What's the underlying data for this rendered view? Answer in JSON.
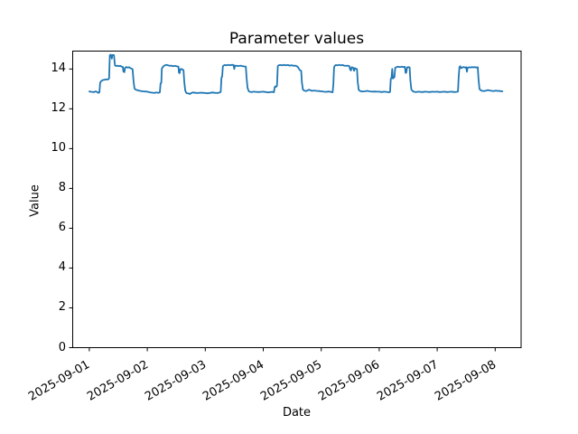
{
  "chart_data": {
    "type": "line",
    "title": "Parameter values",
    "xlabel": "Date",
    "ylabel": "Value",
    "line_color": "#1f77b4",
    "axis_color": "#000000",
    "background_color": "#ffffff",
    "ylim": [
      0,
      14.9
    ],
    "yticks": [
      0,
      2,
      4,
      6,
      8,
      10,
      12,
      14
    ],
    "xticks": [
      "2025-09-01",
      "2025-09-02",
      "2025-09-03",
      "2025-09-04",
      "2025-09-05",
      "2025-09-06",
      "2025-09-07",
      "2025-09-08"
    ],
    "x_unit": "hours since 2025-09-01 00:00",
    "legend": null,
    "grid": false,
    "points": [
      [
        0,
        12.87
      ],
      [
        1,
        12.85
      ],
      [
        2,
        12.84
      ],
      [
        2.6,
        12.88
      ],
      [
        3.2,
        12.84
      ],
      [
        3.8,
        12.8
      ],
      [
        4.2,
        12.83
      ],
      [
        4.5,
        13.32
      ],
      [
        5,
        13.4
      ],
      [
        5.5,
        13.44
      ],
      [
        6.2,
        13.46
      ],
      [
        7,
        13.48
      ],
      [
        7.6,
        13.47
      ],
      [
        8.2,
        13.52
      ],
      [
        8.5,
        14.68
      ],
      [
        8.8,
        14.72
      ],
      [
        9.1,
        14.68
      ],
      [
        9.3,
        14.52
      ],
      [
        9.5,
        14.7
      ],
      [
        10.2,
        14.7
      ],
      [
        10.4,
        14.45
      ],
      [
        10.6,
        14.18
      ],
      [
        11,
        14.15
      ],
      [
        11.6,
        14.17
      ],
      [
        12.2,
        14.14
      ],
      [
        12.8,
        14.16
      ],
      [
        13.4,
        14.12
      ],
      [
        13.9,
        14.1
      ],
      [
        14.1,
        13.88
      ],
      [
        14.5,
        13.84
      ],
      [
        14.8,
        14.06
      ],
      [
        15.3,
        14.1
      ],
      [
        15.9,
        14.07
      ],
      [
        16.4,
        14.09
      ],
      [
        17,
        14.04
      ],
      [
        17.6,
        14.01
      ],
      [
        17.9,
        13.99
      ],
      [
        18.3,
        13.38
      ],
      [
        18.7,
        13.02
      ],
      [
        19.2,
        12.96
      ],
      [
        20,
        12.93
      ],
      [
        21,
        12.9
      ],
      [
        22,
        12.88
      ],
      [
        23,
        12.87
      ],
      [
        24,
        12.86
      ],
      [
        25,
        12.83
      ],
      [
        26,
        12.81
      ],
      [
        27,
        12.8
      ],
      [
        27.8,
        12.82
      ],
      [
        28.6,
        12.8
      ],
      [
        29.2,
        12.83
      ],
      [
        29.5,
        13.28
      ],
      [
        29.8,
        13.3
      ],
      [
        30,
        14.02
      ],
      [
        30.3,
        14.08
      ],
      [
        30.8,
        14.15
      ],
      [
        31.4,
        14.19
      ],
      [
        32,
        14.21
      ],
      [
        32.6,
        14.18
      ],
      [
        33.3,
        14.16
      ],
      [
        34,
        14.17
      ],
      [
        34.8,
        14.14
      ],
      [
        35.6,
        14.16
      ],
      [
        36.4,
        14.13
      ],
      [
        36.9,
        14.12
      ],
      [
        37.1,
        13.82
      ],
      [
        37.4,
        13.79
      ],
      [
        37.7,
        13.99
      ],
      [
        38.2,
        14.0
      ],
      [
        38.7,
        13.96
      ],
      [
        39,
        13.94
      ],
      [
        39.3,
        13.38
      ],
      [
        39.7,
        12.92
      ],
      [
        40.2,
        12.79
      ],
      [
        41,
        12.77
      ],
      [
        41.6,
        12.74
      ],
      [
        42.2,
        12.79
      ],
      [
        43,
        12.82
      ],
      [
        44,
        12.8
      ],
      [
        45,
        12.79
      ],
      [
        46,
        12.81
      ],
      [
        47,
        12.8
      ],
      [
        48,
        12.79
      ],
      [
        49,
        12.78
      ],
      [
        50,
        12.8
      ],
      [
        51,
        12.82
      ],
      [
        52,
        12.8
      ],
      [
        53,
        12.79
      ],
      [
        54,
        12.82
      ],
      [
        54.4,
        12.85
      ],
      [
        54.7,
        13.56
      ],
      [
        55,
        13.62
      ],
      [
        55.3,
        14.14
      ],
      [
        55.7,
        14.18
      ],
      [
        56.2,
        14.2
      ],
      [
        56.8,
        14.18
      ],
      [
        57.5,
        14.21
      ],
      [
        58.2,
        14.19
      ],
      [
        59,
        14.21
      ],
      [
        59.7,
        14.2
      ],
      [
        60,
        14.0
      ],
      [
        60.3,
        14.17
      ],
      [
        61,
        14.16
      ],
      [
        61.8,
        14.15
      ],
      [
        62.6,
        14.17
      ],
      [
        63.4,
        14.14
      ],
      [
        64.2,
        14.13
      ],
      [
        64.8,
        14.12
      ],
      [
        65.1,
        13.58
      ],
      [
        65.5,
        13.05
      ],
      [
        66,
        12.88
      ],
      [
        66.6,
        12.85
      ],
      [
        67.3,
        12.84
      ],
      [
        68,
        12.86
      ],
      [
        69,
        12.85
      ],
      [
        70,
        12.84
      ],
      [
        71,
        12.85
      ],
      [
        72,
        12.86
      ],
      [
        73,
        12.84
      ],
      [
        74,
        12.82
      ],
      [
        75,
        12.84
      ],
      [
        76,
        12.85
      ],
      [
        76.4,
        12.83
      ],
      [
        76.7,
        13.08
      ],
      [
        77,
        13.13
      ],
      [
        77.3,
        13.1
      ],
      [
        77.7,
        13.16
      ],
      [
        78,
        14.14
      ],
      [
        78.3,
        14.18
      ],
      [
        79,
        14.2
      ],
      [
        79.8,
        14.18
      ],
      [
        80.6,
        14.21
      ],
      [
        81.4,
        14.18
      ],
      [
        82.2,
        14.2
      ],
      [
        83,
        14.17
      ],
      [
        83.8,
        14.19
      ],
      [
        84.6,
        14.16
      ],
      [
        85.4,
        14.17
      ],
      [
        86,
        14.13
      ],
      [
        86.3,
        14.1
      ],
      [
        86.6,
        14.04
      ],
      [
        87,
        13.96
      ],
      [
        87.4,
        13.93
      ],
      [
        87.7,
        13.9
      ],
      [
        88,
        13.32
      ],
      [
        88.4,
        12.97
      ],
      [
        89,
        12.91
      ],
      [
        89.8,
        12.89
      ],
      [
        90.4,
        12.93
      ],
      [
        91,
        12.96
      ],
      [
        91.6,
        12.93
      ],
      [
        92.2,
        12.9
      ],
      [
        93,
        12.92
      ],
      [
        94,
        12.9
      ],
      [
        95,
        12.89
      ],
      [
        96,
        12.88
      ],
      [
        97,
        12.86
      ],
      [
        98,
        12.85
      ],
      [
        99,
        12.87
      ],
      [
        100,
        12.85
      ],
      [
        100.7,
        12.83
      ],
      [
        101,
        13.22
      ],
      [
        101.3,
        14.08
      ],
      [
        101.6,
        14.16
      ],
      [
        102,
        14.2
      ],
      [
        102.7,
        14.18
      ],
      [
        103.4,
        14.21
      ],
      [
        104.1,
        14.18
      ],
      [
        104.8,
        14.2
      ],
      [
        105.5,
        14.17
      ],
      [
        106.2,
        14.16
      ],
      [
        106.9,
        14.17
      ],
      [
        107.6,
        14.15
      ],
      [
        108,
        13.96
      ],
      [
        108.3,
        13.93
      ],
      [
        108.6,
        14.09
      ],
      [
        109.2,
        14.07
      ],
      [
        109.6,
        13.91
      ],
      [
        109.9,
        14.04
      ],
      [
        110.4,
        14.01
      ],
      [
        110.8,
        13.99
      ],
      [
        111.1,
        13.35
      ],
      [
        111.5,
        12.95
      ],
      [
        112.1,
        12.89
      ],
      [
        113,
        12.87
      ],
      [
        114,
        12.88
      ],
      [
        115,
        12.9
      ],
      [
        116,
        12.88
      ],
      [
        117,
        12.86
      ],
      [
        118,
        12.87
      ],
      [
        119,
        12.86
      ],
      [
        120,
        12.86
      ],
      [
        121,
        12.84
      ],
      [
        122,
        12.86
      ],
      [
        123,
        12.85
      ],
      [
        124,
        12.83
      ],
      [
        124.5,
        12.85
      ],
      [
        124.8,
        13.5
      ],
      [
        125.1,
        13.56
      ],
      [
        125.4,
        14.0
      ],
      [
        125.7,
        13.52
      ],
      [
        126,
        13.56
      ],
      [
        126.3,
        13.6
      ],
      [
        126.6,
        14.06
      ],
      [
        127.2,
        14.1
      ],
      [
        127.9,
        14.12
      ],
      [
        128.6,
        14.09
      ],
      [
        129.3,
        14.12
      ],
      [
        130,
        14.1
      ],
      [
        130.6,
        14.11
      ],
      [
        130.9,
        13.8
      ],
      [
        131.2,
        13.83
      ],
      [
        131.5,
        14.07
      ],
      [
        132,
        14.1
      ],
      [
        132.6,
        14.08
      ],
      [
        132.9,
        13.42
      ],
      [
        133.3,
        12.97
      ],
      [
        133.9,
        12.88
      ],
      [
        134.6,
        12.85
      ],
      [
        135.4,
        12.84
      ],
      [
        136.2,
        12.86
      ],
      [
        137,
        12.85
      ],
      [
        138,
        12.84
      ],
      [
        139,
        12.86
      ],
      [
        140,
        12.85
      ],
      [
        141,
        12.84
      ],
      [
        142,
        12.86
      ],
      [
        143,
        12.85
      ],
      [
        144,
        12.86
      ],
      [
        145,
        12.84
      ],
      [
        146,
        12.85
      ],
      [
        147,
        12.86
      ],
      [
        148,
        12.84
      ],
      [
        149,
        12.85
      ],
      [
        150,
        12.86
      ],
      [
        151,
        12.84
      ],
      [
        152,
        12.85
      ],
      [
        152.6,
        12.87
      ],
      [
        152.9,
        13.62
      ],
      [
        153.2,
        14.08
      ],
      [
        153.5,
        14.14
      ],
      [
        153.9,
        14.04
      ],
      [
        154.4,
        14.08
      ],
      [
        155,
        14.1
      ],
      [
        155.6,
        14.07
      ],
      [
        156,
        14.09
      ],
      [
        156.3,
        13.86
      ],
      [
        156.6,
        14.07
      ],
      [
        157.2,
        14.09
      ],
      [
        157.8,
        14.07
      ],
      [
        158.4,
        14.1
      ],
      [
        159,
        14.08
      ],
      [
        159.6,
        14.1
      ],
      [
        160.2,
        14.07
      ],
      [
        160.8,
        14.09
      ],
      [
        161.1,
        13.52
      ],
      [
        161.5,
        13.0
      ],
      [
        162,
        12.93
      ],
      [
        162.6,
        12.9
      ],
      [
        163.4,
        12.89
      ],
      [
        164.2,
        12.91
      ],
      [
        165,
        12.94
      ],
      [
        165.8,
        12.92
      ],
      [
        166.6,
        12.9
      ],
      [
        167.4,
        12.89
      ],
      [
        168.2,
        12.91
      ],
      [
        169,
        12.9
      ],
      [
        170,
        12.89
      ],
      [
        171,
        12.88
      ]
    ]
  }
}
